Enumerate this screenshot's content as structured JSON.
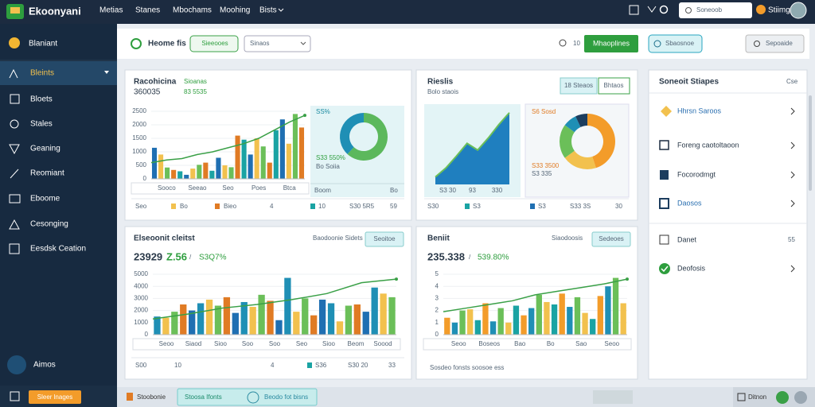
{
  "topbar": {
    "brand": "Ekoonyani",
    "nav": [
      "Metias",
      "Stanes",
      "Mbochams",
      "Moohing",
      "Bists"
    ],
    "search": "Soneoob",
    "user": "Stiimg"
  },
  "sidebar": {
    "header": "Blaniant",
    "items": [
      "Bleints",
      "Bloets",
      "Stales",
      "Geaning",
      "Reomiant",
      "Eboome",
      "Cesonging",
      "Eesdsk Ceation"
    ],
    "footer": "Aimos",
    "button": "Sleer lnages"
  },
  "toolbar": {
    "title": "Heome fis",
    "filter": "Sieeooes",
    "select": "Sinaos",
    "count": "10",
    "primary": "Mhaoplines",
    "secondary": "Sbaosnoe",
    "tertiary": "Sepoaide"
  },
  "panels": [
    {
      "title": "Racohicina",
      "tag": "Sioanas",
      "value": "360035",
      "delta": "83 5535",
      "yticks": [
        0,
        500,
        1000,
        1500,
        2000,
        2500
      ],
      "ylim": [
        0,
        2500
      ],
      "bar_colors": [
        "#1f6fb2",
        "#f2c14e",
        "#6bbf59",
        "#e07b24",
        "#1aa3a3"
      ],
      "bars": [
        1150,
        900,
        420,
        330,
        280,
        150,
        380,
        520,
        600,
        300,
        780,
        500,
        430,
        1600,
        1450,
        900,
        1500,
        1200,
        600,
        1800,
        2200,
        1300,
        2400,
        1900
      ],
      "line": [
        600,
        700,
        750,
        900,
        1000,
        1150,
        1300,
        1500,
        1800,
        2100,
        2350
      ],
      "xlabels": [
        "Sooco",
        "Seeao",
        "Seo",
        "Poes",
        "Btca"
      ],
      "donut": {
        "label": "SS%",
        "values": [
          62,
          38
        ],
        "colors": [
          "#5cb85c",
          "#1f8fb5"
        ],
        "caption": "S33 550%",
        "caption2": "Bo Soiia",
        "footer": [
          "Boom",
          "Bo"
        ]
      },
      "legend": [
        "Seo",
        "Bo",
        "Bieo",
        "4",
        "10",
        "S30 5R5",
        "59"
      ]
    },
    {
      "title": "Rieslis",
      "tag": "Bolo staois",
      "button1": "18 Steaos",
      "button2": "Bhtaos",
      "ylim": [
        0,
        100
      ],
      "area": [
        10,
        22,
        38,
        55,
        46,
        62,
        80,
        96
      ],
      "xlabels": [
        "S3 30",
        "93",
        "330"
      ],
      "donut": {
        "values": [
          45,
          20,
          20,
          8,
          7
        ],
        "colors": [
          "#f39c2a",
          "#f2c14e",
          "#6bbf59",
          "#1f8fb5",
          "#1c3d5e"
        ],
        "caption": "S6 Sosd",
        "caption2": "S33 3500",
        "caption3": "S3 335"
      },
      "legend": [
        "S30",
        "S3",
        "S3",
        "S33 3S",
        "30"
      ]
    },
    {
      "title": "Elseoonit cleitst",
      "link": "Baodoonie Sidets",
      "button": "Seoitoe",
      "value": "23929",
      "value2": "Z.56",
      "sep": "/",
      "value3": "S3Q7%",
      "yticks": [
        0,
        1000,
        2000,
        3000,
        4000,
        5000
      ],
      "ylim": [
        0,
        5000
      ],
      "bar_colors": [
        "#1f8fb5",
        "#f2c14e",
        "#6bbf59",
        "#e07b24",
        "#1f6fb2"
      ],
      "bars": [
        1500,
        1400,
        1900,
        2500,
        2000,
        2600,
        2900,
        2400,
        3100,
        1800,
        2700,
        2300,
        3300,
        2800,
        1200,
        4700,
        1900,
        3000,
        1600,
        2900,
        2600,
        1100,
        2400,
        2500,
        1900,
        3900,
        3400,
        3100
      ],
      "line": [
        1300,
        1700,
        2200,
        2500,
        2900,
        3400,
        4300,
        4600
      ],
      "xlabels": [
        "Seoo",
        "Siaod",
        "Sioo",
        "Soo",
        "Soo",
        "Seo",
        "Sioo",
        "Beom",
        "Soood"
      ],
      "legend": [
        "S00",
        "10",
        "4",
        "S36",
        "S30 20",
        "33"
      ]
    },
    {
      "title": "Beniit",
      "link": "Siaodoosis",
      "button": "Sedeoes",
      "value": "235.338",
      "sep": "/",
      "value2": "539.80%",
      "yticks": [
        0,
        1,
        2,
        3,
        4,
        5
      ],
      "ylim": [
        0,
        5
      ],
      "bar_colors": [
        "#f39c2a",
        "#1f8fb5",
        "#6bbf59",
        "#f2c14e",
        "#1aa3a3"
      ],
      "bars": [
        1.4,
        1.0,
        2.0,
        2.1,
        1.2,
        2.6,
        1.1,
        2.2,
        1.0,
        2.4,
        1.6,
        2.2,
        3.3,
        2.7,
        2.5,
        3.4,
        2.3,
        3.1,
        1.8,
        1.3,
        3.2,
        4.0,
        4.7,
        2.6
      ],
      "line": [
        1.9,
        2.2,
        2.5,
        2.8,
        3.3,
        3.6,
        3.9,
        4.2,
        4.6
      ],
      "xlabels": [
        "Seoo",
        "Boseos",
        "Bao",
        "Bo",
        "Sao",
        "Seoo"
      ],
      "legend": [
        "Sosdeo fonsts soosoe ess"
      ]
    }
  ],
  "side_panel": {
    "title": "Soneoit Stiapes",
    "close": "Cse",
    "items": [
      "Hhrsn Saroos",
      "Foreng caotoltaoon",
      "Focorodmgt",
      "Daosos",
      "Danet",
      "Deofosis"
    ],
    "count": "55"
  },
  "statusbar": {
    "label": "Stoobonie",
    "chip": "Stoosa Ifonts",
    "hint": "Beodo fot bisns",
    "right": "Ditnon"
  }
}
